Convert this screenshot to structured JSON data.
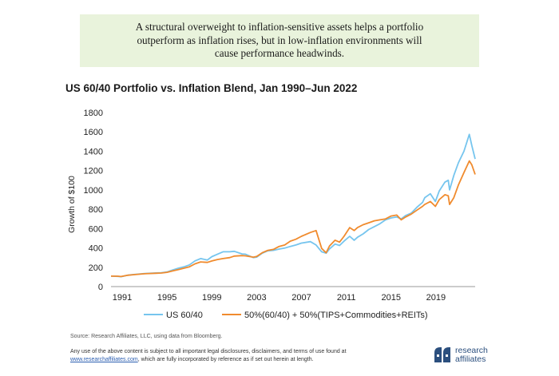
{
  "callout": {
    "line1": "A structural overweight to inflation-sensitive assets helps a portfolio",
    "line2": "outperform as inflation rises, but in low-inflation environments will",
    "line3": "cause performance headwinds."
  },
  "chart_data": {
    "type": "line",
    "title": "US 60/40 Portfolio vs. Inflation Blend, Jan 1990–Jun 2022",
    "xlabel": "",
    "ylabel": "Growth of $100",
    "xlim": [
      1990.0,
      2022.5
    ],
    "ylim": [
      0,
      1800
    ],
    "x_ticks": [
      1991,
      1995,
      1999,
      2003,
      2007,
      2011,
      2015,
      2019
    ],
    "y_ticks": [
      0,
      200,
      400,
      600,
      800,
      1000,
      1200,
      1400,
      1600,
      1800
    ],
    "series": [
      {
        "name": "US 60/40",
        "color": "#76c5ee",
        "x": [
          1990.0,
          1990.6,
          1990.9,
          1991.5,
          1992.0,
          1993.0,
          1994.0,
          1994.5,
          1995.0,
          1995.5,
          1996.0,
          1996.5,
          1997.0,
          1997.5,
          1998.0,
          1998.6,
          1999.0,
          1999.5,
          2000.0,
          2000.6,
          2001.0,
          2001.7,
          2002.0,
          2002.7,
          2003.0,
          2003.5,
          2004.0,
          2004.5,
          2005.0,
          2005.5,
          2006.0,
          2006.5,
          2007.0,
          2007.8,
          2008.3,
          2008.8,
          2009.2,
          2009.5,
          2010.0,
          2010.4,
          2010.8,
          2011.3,
          2011.7,
          2012.0,
          2012.5,
          2013.0,
          2013.5,
          2014.0,
          2014.5,
          2015.0,
          2015.5,
          2015.9,
          2016.3,
          2016.8,
          2017.3,
          2017.8,
          2018.0,
          2018.5,
          2018.95,
          2019.3,
          2019.8,
          2020.1,
          2020.22,
          2020.6,
          2021.0,
          2021.5,
          2021.98,
          2022.2,
          2022.5
        ],
        "values": [
          108,
          106,
          102,
          118,
          125,
          135,
          141,
          144,
          151,
          172,
          190,
          204,
          225,
          266,
          290,
          275,
          310,
          335,
          360,
          360,
          365,
          338,
          335,
          300,
          305,
          345,
          370,
          375,
          388,
          398,
          415,
          430,
          450,
          465,
          430,
          360,
          345,
          390,
          440,
          425,
          470,
          520,
          480,
          510,
          545,
          590,
          620,
          650,
          690,
          710,
          720,
          700,
          735,
          760,
          820,
          870,
          920,
          960,
          880,
          990,
          1080,
          1100,
          1000,
          1150,
          1280,
          1400,
          1575,
          1460,
          1320
        ]
      },
      {
        "name": "50%(60/40) + 50%(TIPS+Commodities+REITs)",
        "color": "#f08b2e",
        "x": [
          1990.0,
          1990.6,
          1990.9,
          1991.5,
          1992.0,
          1993.0,
          1994.0,
          1994.5,
          1995.0,
          1995.5,
          1996.0,
          1996.5,
          1997.0,
          1997.5,
          1998.0,
          1998.6,
          1999.0,
          1999.5,
          2000.0,
          2000.6,
          2001.0,
          2001.7,
          2002.0,
          2002.7,
          2003.0,
          2003.5,
          2004.0,
          2004.5,
          2005.0,
          2005.5,
          2006.0,
          2006.5,
          2007.0,
          2007.8,
          2008.3,
          2008.8,
          2009.2,
          2009.5,
          2010.0,
          2010.4,
          2010.8,
          2011.3,
          2011.7,
          2012.0,
          2012.5,
          2013.0,
          2013.5,
          2014.0,
          2014.5,
          2015.0,
          2015.5,
          2015.9,
          2016.3,
          2016.8,
          2017.3,
          2017.8,
          2018.0,
          2018.5,
          2018.95,
          2019.3,
          2019.8,
          2020.1,
          2020.22,
          2020.6,
          2021.0,
          2021.5,
          2021.98,
          2022.2,
          2022.5
        ],
        "values": [
          108,
          107,
          104,
          117,
          123,
          133,
          138,
          140,
          148,
          162,
          175,
          190,
          205,
          235,
          255,
          250,
          265,
          280,
          290,
          300,
          315,
          320,
          318,
          305,
          312,
          350,
          375,
          385,
          415,
          430,
          470,
          490,
          520,
          560,
          580,
          395,
          350,
          420,
          480,
          460,
          520,
          610,
          580,
          610,
          640,
          660,
          680,
          690,
          700,
          730,
          740,
          690,
          720,
          750,
          790,
          830,
          850,
          880,
          830,
          900,
          950,
          940,
          850,
          920,
          1050,
          1180,
          1300,
          1260,
          1160
        ]
      }
    ]
  },
  "footer": {
    "source": "Source: Research Affiliates, LLC, using data from Bloomberg.",
    "disclaimer_line1": "Any use of the above content is subject to all important legal disclosures, disclaimers, and terms of use found at",
    "disclaimer_link": "www.researchaffiliates.com",
    "disclaimer_rest": ", which are fully incorporated by reference as if set out herein at length."
  },
  "logo": {
    "line1": "research",
    "line2": "affiliates",
    "color": "#2b4f7e"
  }
}
